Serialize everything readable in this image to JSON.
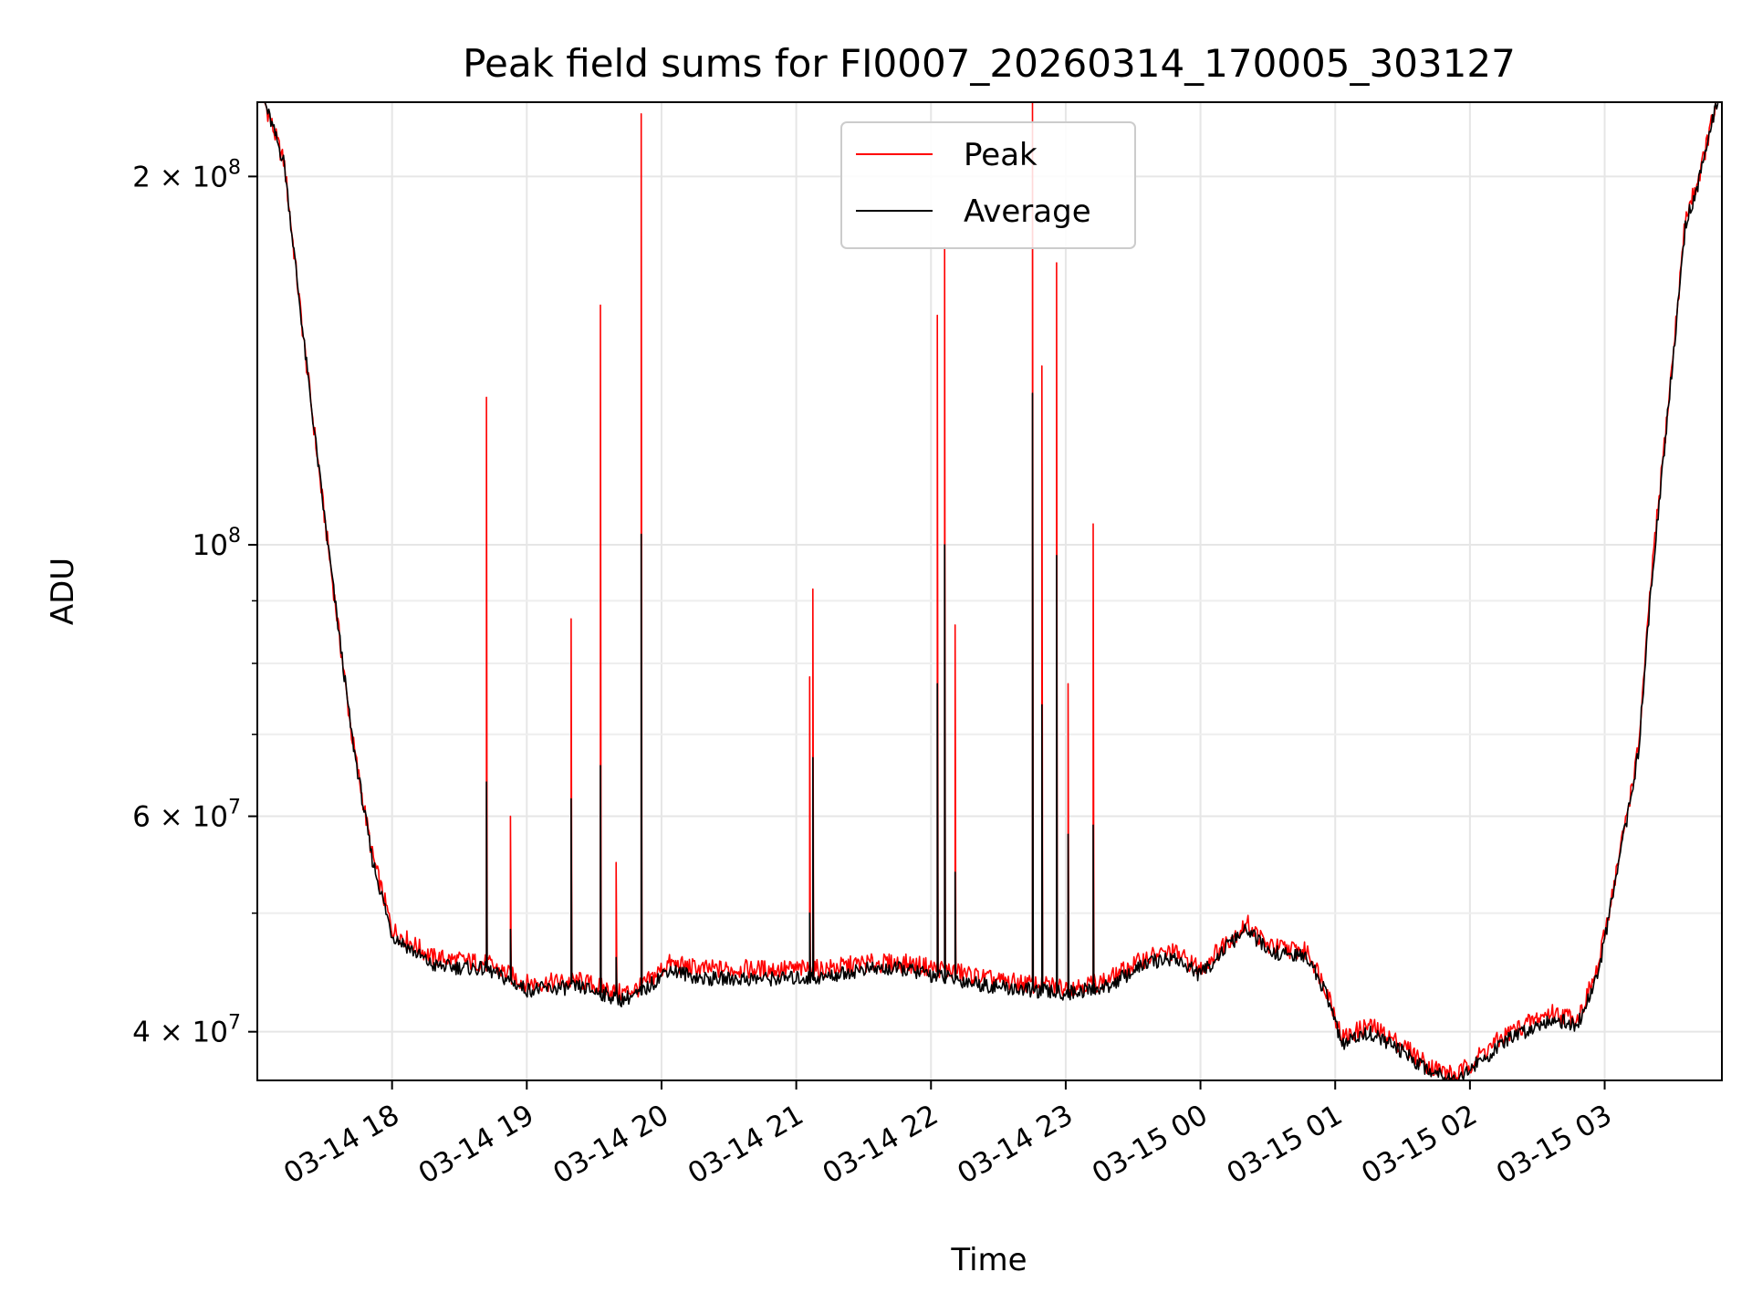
{
  "chart_data": {
    "type": "line",
    "title": "Peak field sums for FI0007_20260314_170005_303127",
    "xlabel": "Time",
    "ylabel": "ADU",
    "yscale": "log",
    "ylim": [
      36500000,
      230000000
    ],
    "xlim_hours": [
      17.0,
      27.87
    ],
    "grid": true,
    "legend_location": "upper center",
    "x_ticks": [
      {
        "hour": 18,
        "label": "03-14 18"
      },
      {
        "hour": 19,
        "label": "03-14 19"
      },
      {
        "hour": 20,
        "label": "03-14 20"
      },
      {
        "hour": 21,
        "label": "03-14 21"
      },
      {
        "hour": 22,
        "label": "03-14 22"
      },
      {
        "hour": 23,
        "label": "03-14 23"
      },
      {
        "hour": 24,
        "label": "03-15 00"
      },
      {
        "hour": 25,
        "label": "03-15 01"
      },
      {
        "hour": 26,
        "label": "03-15 02"
      },
      {
        "hour": 27,
        "label": "03-15 03"
      }
    ],
    "y_major_ticks": [
      {
        "value": 40000000,
        "base": "4",
        "exp": "7"
      },
      {
        "value": 60000000,
        "base": "6",
        "exp": "7"
      },
      {
        "value": 100000000,
        "base": "",
        "exp": "8"
      },
      {
        "value": 200000000,
        "base": "2",
        "exp": "8"
      }
    ],
    "y_minor_ticks": [
      50000000,
      70000000,
      80000000,
      90000000
    ],
    "series": [
      {
        "name": "Peak",
        "color": "#ff0000",
        "baseline_points": [
          [
            17.0,
            240000000
          ],
          [
            17.2,
            205000000
          ],
          [
            17.35,
            145000000
          ],
          [
            17.5,
            105000000
          ],
          [
            17.7,
            70000000
          ],
          [
            17.85,
            56000000
          ],
          [
            18.0,
            48500000
          ],
          [
            18.3,
            46000000
          ],
          [
            18.7,
            45500000
          ],
          [
            19.0,
            43800000
          ],
          [
            19.4,
            44000000
          ],
          [
            19.7,
            43000000
          ],
          [
            19.85,
            43500000
          ],
          [
            20.05,
            45500000
          ],
          [
            20.3,
            45000000
          ],
          [
            20.8,
            45000000
          ],
          [
            21.2,
            45000000
          ],
          [
            21.5,
            45500000
          ],
          [
            21.8,
            45500000
          ],
          [
            22.1,
            45000000
          ],
          [
            22.5,
            44000000
          ],
          [
            23.0,
            43500000
          ],
          [
            23.3,
            44000000
          ],
          [
            23.6,
            46000000
          ],
          [
            23.8,
            46500000
          ],
          [
            24.0,
            45000000
          ],
          [
            24.2,
            47500000
          ],
          [
            24.35,
            49000000
          ],
          [
            24.5,
            47000000
          ],
          [
            24.8,
            46500000
          ],
          [
            24.95,
            43000000
          ],
          [
            25.05,
            39500000
          ],
          [
            25.25,
            40500000
          ],
          [
            25.5,
            39000000
          ],
          [
            25.7,
            37500000
          ],
          [
            25.9,
            36800000
          ],
          [
            26.1,
            38500000
          ],
          [
            26.3,
            40000000
          ],
          [
            26.6,
            41500000
          ],
          [
            26.8,
            41000000
          ],
          [
            26.95,
            45000000
          ],
          [
            27.1,
            55000000
          ],
          [
            27.25,
            68000000
          ],
          [
            27.35,
            95000000
          ],
          [
            27.5,
            140000000
          ],
          [
            27.6,
            185000000
          ],
          [
            27.7,
            200000000
          ],
          [
            27.87,
            240000000
          ]
        ],
        "spikes": [
          [
            18.7,
            132000000
          ],
          [
            18.88,
            60000000
          ],
          [
            19.33,
            87000000
          ],
          [
            19.55,
            157000000
          ],
          [
            19.66,
            55000000
          ],
          [
            19.85,
            225000000
          ],
          [
            21.1,
            78000000
          ],
          [
            21.12,
            92000000
          ],
          [
            22.05,
            154000000
          ],
          [
            22.1,
            175000000
          ],
          [
            22.18,
            86000000
          ],
          [
            22.75,
            230000000
          ],
          [
            22.82,
            140000000
          ],
          [
            22.93,
            170000000
          ],
          [
            23.02,
            77000000
          ],
          [
            23.2,
            104000000
          ]
        ]
      },
      {
        "name": "Average",
        "color": "#000000",
        "baseline_points": [
          [
            17.0,
            240000000
          ],
          [
            17.2,
            205000000
          ],
          [
            17.35,
            145000000
          ],
          [
            17.5,
            105000000
          ],
          [
            17.7,
            70000000
          ],
          [
            17.85,
            55500000
          ],
          [
            18.0,
            48000000
          ],
          [
            18.3,
            45300000
          ],
          [
            18.7,
            45000000
          ],
          [
            19.0,
            43300000
          ],
          [
            19.4,
            43500000
          ],
          [
            19.7,
            42500000
          ],
          [
            19.85,
            43000000
          ],
          [
            20.05,
            45000000
          ],
          [
            20.3,
            44200000
          ],
          [
            20.8,
            44200000
          ],
          [
            21.2,
            44300000
          ],
          [
            21.5,
            45000000
          ],
          [
            21.8,
            45000000
          ],
          [
            22.1,
            44300000
          ],
          [
            22.5,
            43500000
          ],
          [
            23.0,
            43000000
          ],
          [
            23.3,
            43500000
          ],
          [
            23.6,
            45500000
          ],
          [
            23.8,
            46000000
          ],
          [
            24.0,
            44500000
          ],
          [
            24.2,
            47000000
          ],
          [
            24.35,
            48500000
          ],
          [
            24.5,
            46500000
          ],
          [
            24.8,
            46000000
          ],
          [
            24.95,
            42500000
          ],
          [
            25.05,
            39000000
          ],
          [
            25.25,
            40000000
          ],
          [
            25.5,
            38500000
          ],
          [
            25.7,
            37200000
          ],
          [
            25.9,
            36600000
          ],
          [
            26.1,
            38000000
          ],
          [
            26.3,
            39500000
          ],
          [
            26.6,
            41000000
          ],
          [
            26.8,
            40500000
          ],
          [
            26.95,
            44500000
          ],
          [
            27.1,
            54500000
          ],
          [
            27.25,
            67500000
          ],
          [
            27.35,
            94000000
          ],
          [
            27.5,
            139000000
          ],
          [
            27.6,
            183000000
          ],
          [
            27.7,
            198000000
          ],
          [
            27.87,
            240000000
          ]
        ],
        "spikes": [
          [
            18.7,
            64000000
          ],
          [
            18.88,
            48500000
          ],
          [
            19.33,
            62000000
          ],
          [
            19.55,
            66000000
          ],
          [
            19.66,
            46000000
          ],
          [
            19.85,
            102000000
          ],
          [
            21.1,
            50000000
          ],
          [
            21.12,
            67000000
          ],
          [
            22.05,
            77000000
          ],
          [
            22.1,
            100000000
          ],
          [
            22.18,
            54000000
          ],
          [
            22.75,
            133000000
          ],
          [
            22.82,
            74000000
          ],
          [
            22.93,
            98000000
          ],
          [
            23.02,
            58000000
          ],
          [
            23.2,
            59000000
          ]
        ]
      }
    ]
  }
}
